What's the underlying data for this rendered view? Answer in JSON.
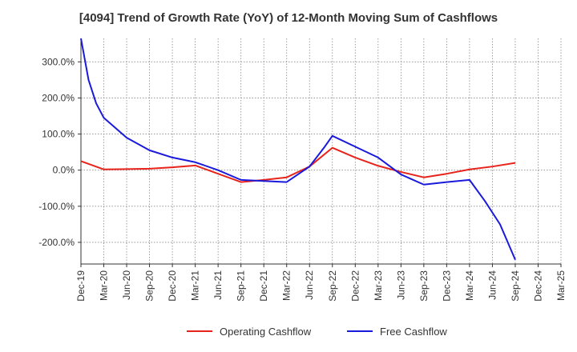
{
  "chart_data": {
    "type": "line",
    "title": "[4094]  Trend of Growth Rate (YoY) of 12-Month Moving Sum of Cashflows",
    "xlabel": "",
    "ylabel": "",
    "ylim": [
      -260,
      365
    ],
    "grid": true,
    "legend_position": "bottom",
    "y_ticks": [
      {
        "value": 300,
        "label": "300.0%"
      },
      {
        "value": 200,
        "label": "200.0%"
      },
      {
        "value": 100,
        "label": "100.0%"
      },
      {
        "value": 0,
        "label": "0.0%"
      },
      {
        "value": -100,
        "label": "-100.0%"
      },
      {
        "value": -200,
        "label": "-200.0%"
      }
    ],
    "x_ticks": [
      "Dec-19",
      "Mar-20",
      "Jun-20",
      "Sep-20",
      "Dec-20",
      "Mar-21",
      "Jun-21",
      "Sep-21",
      "Dec-21",
      "Mar-22",
      "Jun-22",
      "Sep-22",
      "Dec-22",
      "Mar-23",
      "Jun-23",
      "Sep-23",
      "Dec-23",
      "Mar-24",
      "Jun-24",
      "Sep-24",
      "Dec-24",
      "Mar-25"
    ],
    "series": [
      {
        "name": "Operating Cashflow",
        "color": "#e8231b",
        "points": [
          {
            "x": "Dec-19",
            "y": 25
          },
          {
            "x": "Mar-20",
            "y": 2
          },
          {
            "x": "Jun-20",
            "y": 3
          },
          {
            "x": "Sep-20",
            "y": 4
          },
          {
            "x": "Dec-20",
            "y": 8
          },
          {
            "x": "Mar-21",
            "y": 13
          },
          {
            "x": "Jun-21",
            "y": -10
          },
          {
            "x": "Sep-21",
            "y": -33
          },
          {
            "x": "Dec-21",
            "y": -27
          },
          {
            "x": "Mar-22",
            "y": -20
          },
          {
            "x": "Jun-22",
            "y": 10
          },
          {
            "x": "Sep-22",
            "y": 62
          },
          {
            "x": "Dec-22",
            "y": 35
          },
          {
            "x": "Mar-23",
            "y": 12
          },
          {
            "x": "Jun-23",
            "y": -5
          },
          {
            "x": "Sep-23",
            "y": -20
          },
          {
            "x": "Dec-23",
            "y": -10
          },
          {
            "x": "Mar-24",
            "y": 2
          },
          {
            "x": "Jun-24",
            "y": 10
          },
          {
            "x": "Sep-24",
            "y": 20
          }
        ]
      },
      {
        "name": "Free Cashflow",
        "color": "#1a1adc",
        "points": [
          {
            "x": "Dec-19",
            "y": 365
          },
          {
            "x": "Jan-20",
            "y": 250
          },
          {
            "x": "Feb-20",
            "y": 185
          },
          {
            "x": "Mar-20",
            "y": 145
          },
          {
            "x": "Jun-20",
            "y": 90
          },
          {
            "x": "Sep-20",
            "y": 55
          },
          {
            "x": "Dec-20",
            "y": 35
          },
          {
            "x": "Mar-21",
            "y": 22
          },
          {
            "x": "Jun-21",
            "y": 0
          },
          {
            "x": "Sep-21",
            "y": -27
          },
          {
            "x": "Dec-21",
            "y": -30
          },
          {
            "x": "Mar-22",
            "y": -33
          },
          {
            "x": "Jun-22",
            "y": 10
          },
          {
            "x": "Aug-22",
            "y": 65
          },
          {
            "x": "Sep-22",
            "y": 95
          },
          {
            "x": "Dec-22",
            "y": 65
          },
          {
            "x": "Mar-23",
            "y": 35
          },
          {
            "x": "Jun-23",
            "y": -12
          },
          {
            "x": "Sep-23",
            "y": -40
          },
          {
            "x": "Dec-23",
            "y": -33
          },
          {
            "x": "Mar-24",
            "y": -27
          },
          {
            "x": "May-24",
            "y": -85
          },
          {
            "x": "Jul-24",
            "y": -150
          },
          {
            "x": "Sep-24",
            "y": -248
          }
        ]
      }
    ]
  }
}
